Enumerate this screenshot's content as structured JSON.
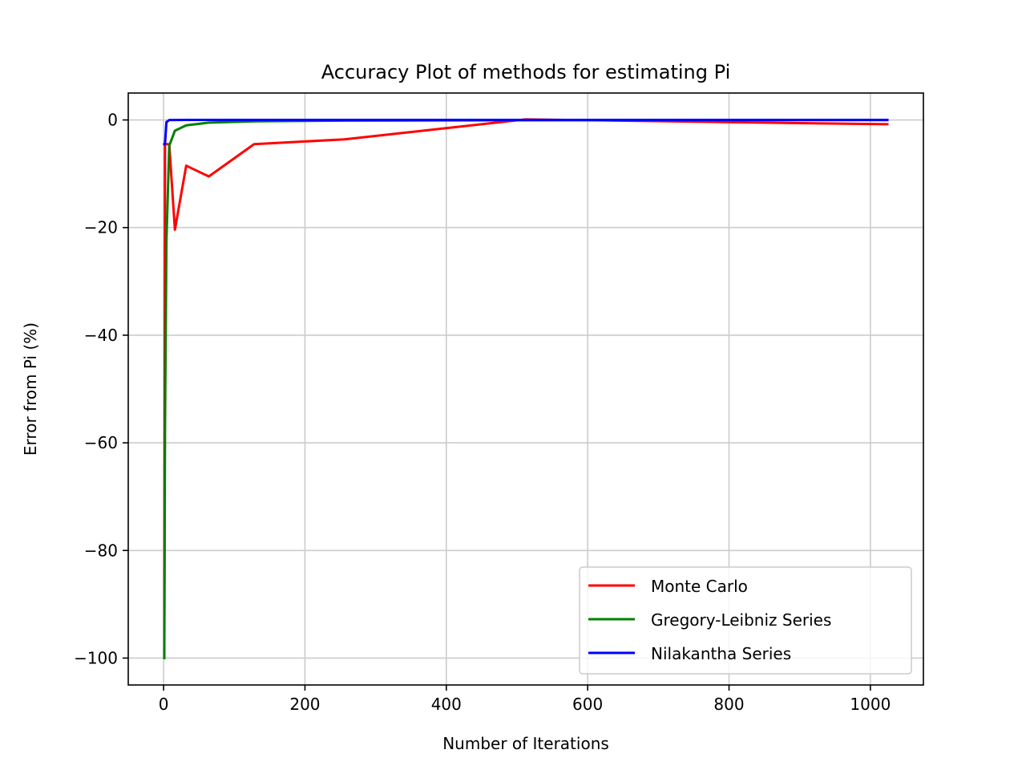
{
  "chart_data": {
    "type": "line",
    "title": "Accuracy Plot of methods for estimating Pi",
    "xlabel": "Number of Iterations",
    "ylabel": "Error from Pi (%)",
    "xlim": [
      -50,
      1075
    ],
    "ylim": [
      -105,
      5
    ],
    "x_ticks": [
      0,
      200,
      400,
      600,
      800,
      1000
    ],
    "x_tick_labels": [
      "0",
      "200",
      "400",
      "600",
      "800",
      "1000"
    ],
    "y_ticks": [
      0,
      -20,
      -40,
      -60,
      -80,
      -100
    ],
    "y_tick_labels": [
      "0",
      "−20",
      "−40",
      "−60",
      "−80",
      "−100"
    ],
    "grid": true,
    "legend_position": "lower-right",
    "series": [
      {
        "name": "Monte Carlo",
        "color": "#ff0000",
        "x": [
          1,
          2,
          4,
          8,
          16,
          32,
          64,
          128,
          256,
          512,
          1024
        ],
        "y": [
          -100,
          -4.5,
          -4.5,
          -4.5,
          -20.4,
          -8.5,
          -10.5,
          -4.5,
          -3.6,
          0.1,
          -0.8
        ]
      },
      {
        "name": "Gregory-Leibniz Series",
        "color": "#008000",
        "x": [
          1,
          2,
          4,
          8,
          16,
          32,
          64,
          128,
          256,
          512,
          1024
        ],
        "y": [
          -100,
          -57.6,
          -22.6,
          -4.8,
          -2.0,
          -1.0,
          -0.5,
          -0.25,
          -0.12,
          -0.06,
          -0.03
        ]
      },
      {
        "name": "Nilakantha Series",
        "color": "#0000ff",
        "x": [
          1,
          2,
          4,
          8,
          16,
          32,
          64,
          128,
          256,
          512,
          1024
        ],
        "y": [
          -4.5,
          -4.5,
          -0.4,
          -0.02,
          -0.003,
          0,
          0,
          0,
          0,
          0,
          0
        ]
      }
    ]
  }
}
